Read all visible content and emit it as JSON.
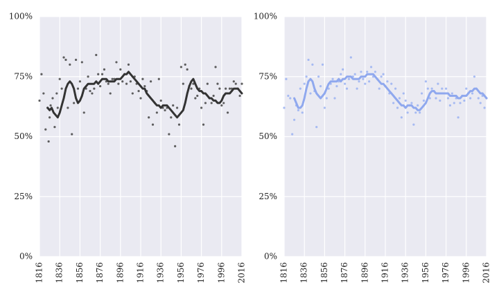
{
  "chart_data": [
    {
      "type": "line",
      "panel": "left",
      "title": "",
      "xlabel": "",
      "ylabel": "",
      "xlim": [
        1816,
        2016
      ],
      "ylim": [
        0,
        100
      ],
      "xticks": [
        "1816",
        "1836",
        "1856",
        "1876",
        "1896",
        "1916",
        "1936",
        "1956",
        "1976",
        "1996",
        "2016"
      ],
      "yticks": [
        "0%",
        "25%",
        "50%",
        "75%",
        "100%"
      ],
      "grid": true,
      "legend": "none",
      "colors": {
        "background": "#eaeaf2",
        "grid": "#ffffff",
        "line": "#333333",
        "points": "#444444"
      },
      "series": [
        {
          "style": "smoothed-line",
          "x": [
            1824,
            1826,
            1828,
            1830,
            1832,
            1834,
            1836,
            1838,
            1840,
            1842,
            1844,
            1846,
            1848,
            1850,
            1852,
            1854,
            1856,
            1858,
            1860,
            1862,
            1864,
            1866,
            1868,
            1870,
            1872,
            1874,
            1876,
            1878,
            1880,
            1882,
            1884,
            1886,
            1888,
            1890,
            1892,
            1894,
            1896,
            1898,
            1900,
            1902,
            1904,
            1906,
            1908,
            1910,
            1912,
            1914,
            1916,
            1918,
            1920,
            1922,
            1924,
            1926,
            1928,
            1930,
            1932,
            1934,
            1936,
            1938,
            1940,
            1942,
            1944,
            1946,
            1948,
            1950,
            1952,
            1954,
            1956,
            1958,
            1960,
            1962,
            1964,
            1966,
            1968,
            1970,
            1972,
            1974,
            1976,
            1978,
            1980,
            1982,
            1984,
            1986,
            1988,
            1990,
            1992,
            1994,
            1996,
            1998,
            2000,
            2002,
            2004,
            2006,
            2008,
            2010,
            2012,
            2014,
            2016
          ],
          "y": [
            62,
            61,
            62,
            60,
            59,
            58,
            60,
            63,
            66,
            70,
            72,
            73,
            72,
            70,
            66,
            64,
            65,
            67,
            70,
            71,
            72,
            72,
            72,
            72,
            73,
            72,
            73,
            74,
            74,
            74,
            73,
            73,
            73,
            73,
            74,
            74,
            74,
            75,
            76,
            76,
            77,
            76,
            75,
            74,
            73,
            72,
            71,
            70,
            70,
            68,
            67,
            66,
            65,
            64,
            63,
            63,
            62,
            63,
            63,
            63,
            62,
            61,
            60,
            59,
            58,
            59,
            60,
            61,
            64,
            68,
            71,
            73,
            74,
            72,
            70,
            69,
            69,
            68,
            68,
            67,
            66,
            66,
            65,
            65,
            64,
            64,
            65,
            67,
            68,
            68,
            68,
            69,
            70,
            70,
            70,
            69,
            68
          ]
        },
        {
          "style": "scatter",
          "x": [
            1816,
            1818,
            1820,
            1822,
            1824,
            1825,
            1826,
            1827,
            1829,
            1831,
            1833,
            1834,
            1836,
            1838,
            1840,
            1842,
            1844,
            1846,
            1848,
            1850,
            1852,
            1854,
            1856,
            1858,
            1860,
            1862,
            1864,
            1866,
            1868,
            1870,
            1872,
            1874,
            1876,
            1878,
            1880,
            1882,
            1884,
            1886,
            1888,
            1890,
            1892,
            1894,
            1896,
            1898,
            1900,
            1902,
            1904,
            1906,
            1908,
            1910,
            1912,
            1914,
            1916,
            1918,
            1920,
            1922,
            1924,
            1926,
            1928,
            1930,
            1932,
            1934,
            1936,
            1938,
            1940,
            1942,
            1944,
            1946,
            1948,
            1950,
            1952,
            1954,
            1956,
            1958,
            1960,
            1962,
            1964,
            1966,
            1968,
            1970,
            1972,
            1974,
            1976,
            1978,
            1980,
            1982,
            1984,
            1986,
            1988,
            1990,
            1992,
            1994,
            1996,
            1998,
            2000,
            2002,
            2004,
            2006,
            2008,
            2010,
            2012,
            2014,
            2016
          ],
          "y": [
            65,
            76,
            68,
            53,
            62,
            48,
            58,
            63,
            66,
            54,
            68,
            62,
            74,
            70,
            83,
            82,
            62,
            80,
            51,
            64,
            82,
            70,
            73,
            81,
            60,
            70,
            75,
            69,
            68,
            70,
            84,
            76,
            71,
            76,
            78,
            73,
            72,
            68,
            74,
            74,
            81,
            72,
            78,
            73,
            76,
            72,
            80,
            73,
            68,
            75,
            72,
            69,
            66,
            74,
            71,
            69,
            58,
            73,
            55,
            64,
            60,
            74,
            65,
            62,
            61,
            62,
            51,
            58,
            63,
            46,
            62,
            55,
            79,
            72,
            80,
            78,
            71,
            70,
            72,
            66,
            67,
            70,
            62,
            55,
            64,
            72,
            66,
            64,
            67,
            79,
            72,
            70,
            63,
            64,
            70,
            60,
            70,
            70,
            73,
            72,
            70,
            67,
            72
          ]
        }
      ]
    },
    {
      "type": "line",
      "panel": "right",
      "title": "",
      "xlabel": "",
      "ylabel": "",
      "xlim": [
        1816,
        2016
      ],
      "ylim": [
        0,
        100
      ],
      "xticks": [
        "1816",
        "1836",
        "1856",
        "1876",
        "1896",
        "1916",
        "1936",
        "1956",
        "1976",
        "1996",
        "2016"
      ],
      "yticks": [
        "0%",
        "25%",
        "50%",
        "75%",
        "100%"
      ],
      "grid": true,
      "legend": "none",
      "colors": {
        "background": "#eaeaf2",
        "grid": "#ffffff",
        "line": "#8fa8ee",
        "points": "#9ab2f2"
      },
      "series": [
        {
          "style": "smoothed-line",
          "x": [
            1826,
            1828,
            1830,
            1832,
            1834,
            1836,
            1838,
            1840,
            1842,
            1844,
            1846,
            1848,
            1850,
            1852,
            1854,
            1856,
            1858,
            1860,
            1862,
            1864,
            1866,
            1868,
            1870,
            1872,
            1874,
            1876,
            1878,
            1880,
            1882,
            1884,
            1886,
            1888,
            1890,
            1892,
            1894,
            1896,
            1898,
            1900,
            1902,
            1904,
            1906,
            1908,
            1910,
            1912,
            1914,
            1916,
            1918,
            1920,
            1922,
            1924,
            1926,
            1928,
            1930,
            1932,
            1934,
            1936,
            1938,
            1940,
            1942,
            1944,
            1946,
            1948,
            1950,
            1952,
            1954,
            1956,
            1958,
            1960,
            1962,
            1964,
            1966,
            1968,
            1970,
            1972,
            1974,
            1976,
            1978,
            1980,
            1982,
            1984,
            1986,
            1988,
            1990,
            1992,
            1994,
            1996,
            1998,
            2000,
            2002,
            2004,
            2006,
            2008,
            2010,
            2012,
            2014,
            2016
          ],
          "y": [
            66,
            64,
            62,
            62,
            63,
            66,
            70,
            73,
            74,
            73,
            70,
            68,
            67,
            66,
            67,
            68,
            70,
            72,
            73,
            73,
            73,
            73,
            74,
            73,
            74,
            74,
            75,
            75,
            75,
            74,
            74,
            74,
            74,
            75,
            75,
            75,
            76,
            76,
            76,
            76,
            75,
            74,
            73,
            72,
            72,
            71,
            70,
            69,
            68,
            67,
            66,
            65,
            64,
            63,
            63,
            62,
            63,
            63,
            63,
            62,
            62,
            61,
            61,
            62,
            63,
            64,
            66,
            68,
            69,
            69,
            68,
            68,
            68,
            68,
            68,
            68,
            68,
            67,
            67,
            67,
            67,
            66,
            66,
            67,
            67,
            67,
            68,
            69,
            69,
            70,
            70,
            69,
            68,
            68,
            67,
            66
          ]
        },
        {
          "style": "scatter",
          "x": [
            1816,
            1818,
            1820,
            1822,
            1824,
            1826,
            1828,
            1830,
            1832,
            1834,
            1836,
            1838,
            1840,
            1842,
            1844,
            1846,
            1848,
            1850,
            1852,
            1854,
            1856,
            1858,
            1860,
            1862,
            1864,
            1866,
            1868,
            1870,
            1872,
            1874,
            1876,
            1878,
            1880,
            1882,
            1884,
            1886,
            1888,
            1890,
            1892,
            1894,
            1896,
            1898,
            1900,
            1902,
            1904,
            1906,
            1908,
            1910,
            1912,
            1914,
            1916,
            1918,
            1920,
            1922,
            1924,
            1926,
            1928,
            1930,
            1932,
            1934,
            1936,
            1938,
            1940,
            1942,
            1944,
            1946,
            1948,
            1950,
            1952,
            1954,
            1956,
            1958,
            1960,
            1962,
            1964,
            1966,
            1968,
            1970,
            1972,
            1974,
            1976,
            1978,
            1980,
            1982,
            1984,
            1986,
            1988,
            1990,
            1992,
            1994,
            1996,
            1998,
            2000,
            2002,
            2004,
            2006,
            2008,
            2010,
            2012,
            2014,
            2016
          ],
          "y": [
            62,
            74,
            67,
            66,
            51,
            57,
            63,
            61,
            70,
            60,
            72,
            75,
            82,
            68,
            80,
            69,
            54,
            75,
            71,
            80,
            62,
            66,
            70,
            72,
            74,
            66,
            71,
            73,
            76,
            78,
            72,
            70,
            74,
            83,
            75,
            76,
            70,
            73,
            77,
            74,
            72,
            77,
            73,
            79,
            75,
            77,
            74,
            70,
            75,
            76,
            71,
            73,
            68,
            72,
            64,
            70,
            62,
            66,
            58,
            68,
            65,
            60,
            63,
            64,
            55,
            60,
            63,
            60,
            68,
            65,
            73,
            70,
            66,
            70,
            69,
            66,
            72,
            65,
            70,
            68,
            70,
            66,
            63,
            68,
            64,
            66,
            58,
            64,
            67,
            65,
            70,
            68,
            66,
            68,
            75,
            70,
            66,
            64,
            67,
            62,
            66
          ]
        }
      ]
    }
  ]
}
